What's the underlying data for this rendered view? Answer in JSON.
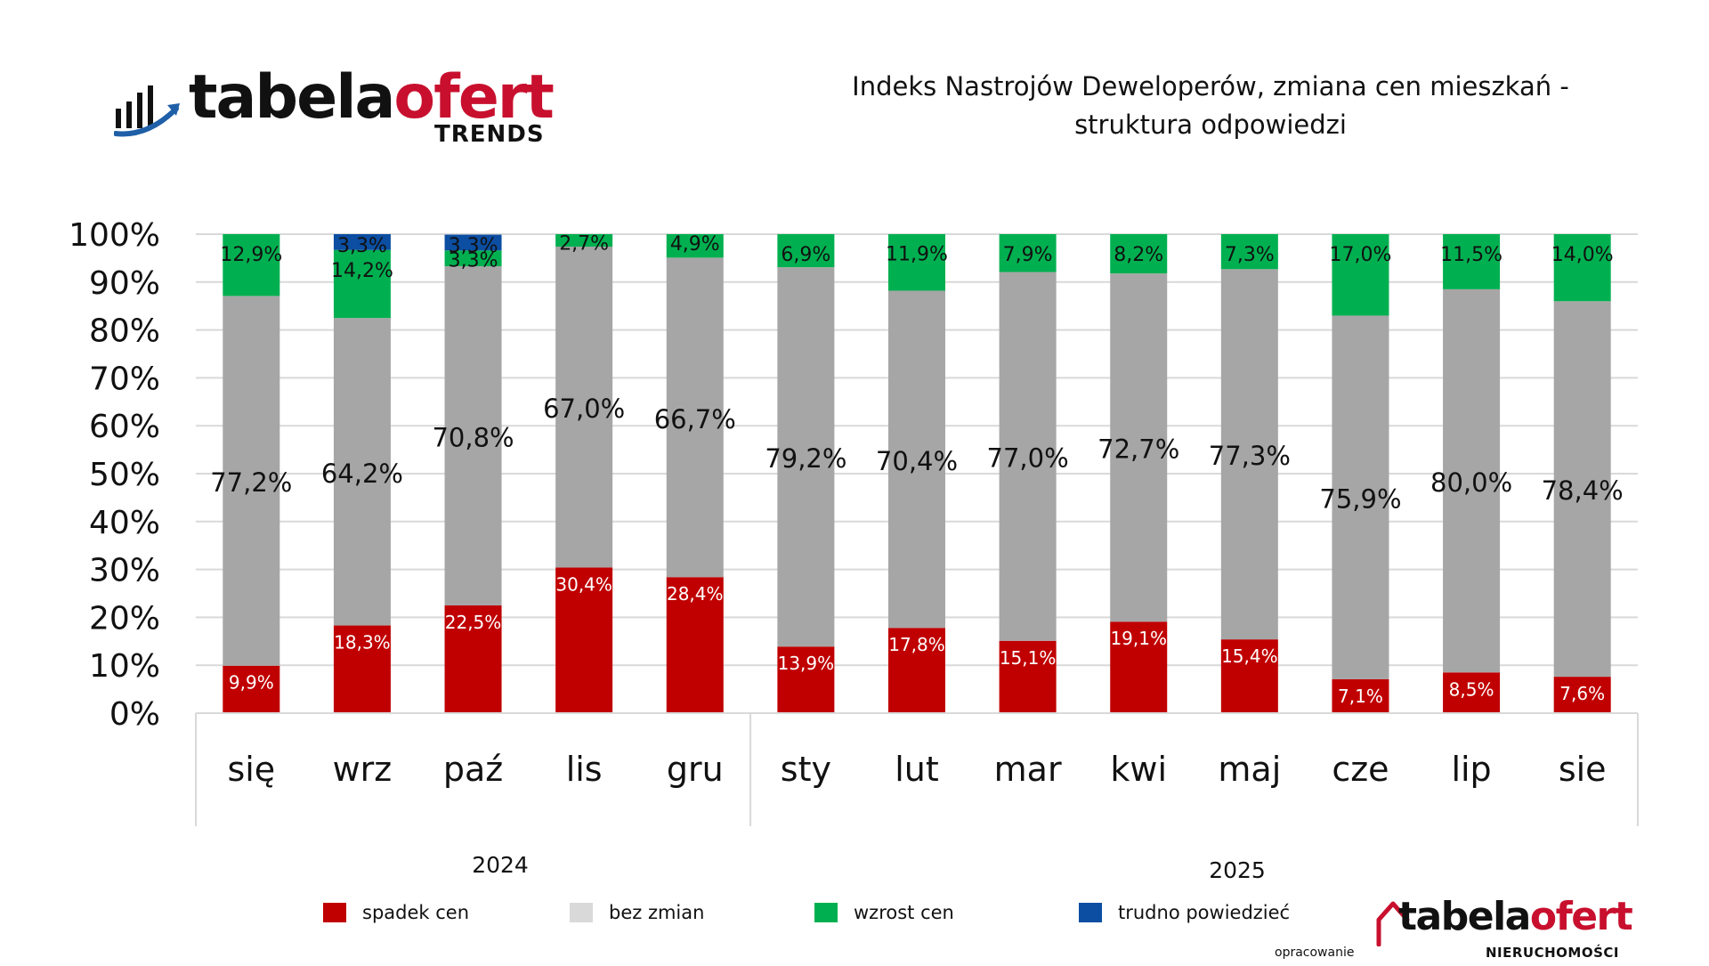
{
  "header": {
    "logo_word_1": "tabela",
    "logo_word_2": "ofert",
    "logo_sub": "TRENDS",
    "title_line1": "Indeks Nastrojów Deweloperów, zmiana cen mieszkań -",
    "title_line2": "struktura odpowiedzi"
  },
  "footer": {
    "logo_word_1": "tabela",
    "logo_word_2": "ofert",
    "logo_sub": "NIERUCHOMOŚCI",
    "credit": "opracowanie"
  },
  "colors": {
    "spadek": "#c00000",
    "bez": "#a6a6a6",
    "bez_legend": "#d9d9d9",
    "wzrost": "#00b050",
    "trudno": "#0b4ea2",
    "brand_red": "#c8102e",
    "logo_blue": "#1f5fa8"
  },
  "legend": [
    {
      "label": "spadek cen",
      "color_key": "spadek"
    },
    {
      "label": "bez zmian",
      "color_key": "bez_legend"
    },
    {
      "label": "wzrost cen",
      "color_key": "wzrost"
    },
    {
      "label": "trudno powiedzieć",
      "color_key": "trudno"
    }
  ],
  "chart_data": {
    "type": "bar",
    "stacked": true,
    "title": "Indeks Nastrojów Deweloperów, zmiana cen mieszkań - struktura odpowiedzi",
    "categories": [
      "się",
      "wrz",
      "paź",
      "lis",
      "gru",
      "sty",
      "lut",
      "mar",
      "kwi",
      "maj",
      "cze",
      "lip",
      "sie"
    ],
    "groups": [
      {
        "label": "2024",
        "count": 5
      },
      {
        "label": "2025",
        "count": 8
      }
    ],
    "yticks": [
      "0%",
      "10%",
      "20%",
      "30%",
      "40%",
      "50%",
      "60%",
      "70%",
      "80%",
      "90%",
      "100%"
    ],
    "ylim": [
      0,
      100
    ],
    "grid": true,
    "series": [
      {
        "name": "spadek cen",
        "color_key": "spadek",
        "values": [
          9.9,
          18.3,
          22.5,
          30.4,
          28.4,
          13.9,
          17.8,
          15.1,
          19.1,
          15.4,
          7.1,
          8.5,
          7.6
        ],
        "labels": [
          "9,9%",
          "18,3%",
          "22,5%",
          "30,4%",
          "28,4%",
          "13,9%",
          "17,8%",
          "15,1%",
          "19,1%",
          "15,4%",
          "7,1%",
          "8,5%",
          "7,6%"
        ]
      },
      {
        "name": "bez zmian",
        "color_key": "bez",
        "values": [
          77.2,
          64.2,
          70.8,
          67.0,
          66.7,
          79.2,
          70.4,
          77.0,
          72.7,
          77.3,
          75.9,
          80.0,
          78.4
        ],
        "labels": [
          "77,2%",
          "64,2%",
          "70,8%",
          "67,0%",
          "66,7%",
          "79,2%",
          "70,4%",
          "77,0%",
          "72,7%",
          "77,3%",
          "75,9%",
          "80,0%",
          "78,4%"
        ]
      },
      {
        "name": "wzrost cen",
        "color_key": "wzrost",
        "values": [
          12.9,
          14.2,
          3.3,
          2.7,
          4.9,
          6.9,
          11.9,
          7.9,
          8.2,
          7.3,
          17.0,
          11.5,
          14.0
        ],
        "labels": [
          "12,9%",
          "14,2%",
          "3,3%",
          "2,7%",
          "4,9%",
          "6,9%",
          "11,9%",
          "7,9%",
          "8,2%",
          "7,3%",
          "17,0%",
          "11,5%",
          "14,0%"
        ]
      },
      {
        "name": "trudno powiedzieć",
        "color_key": "trudno",
        "values": [
          0,
          3.3,
          3.3,
          0,
          0,
          0,
          0,
          0,
          0,
          0,
          0,
          0,
          0
        ],
        "labels": [
          "",
          "3,3%",
          "3,3%",
          "",
          "",
          "",
          "",
          "",
          "",
          "",
          "",
          "",
          ""
        ]
      }
    ]
  }
}
